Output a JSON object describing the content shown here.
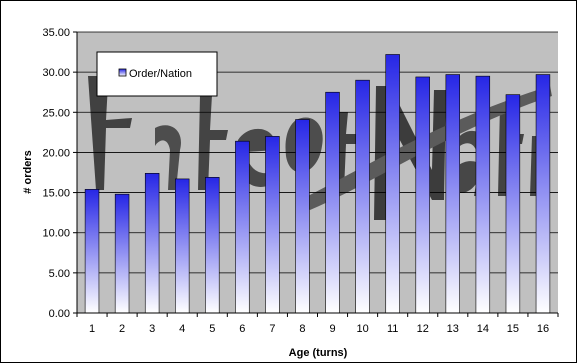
{
  "chart_data": {
    "type": "bar",
    "categories": [
      "1",
      "2",
      "3",
      "4",
      "5",
      "6",
      "7",
      "8",
      "9",
      "10",
      "11",
      "12",
      "13",
      "14",
      "15",
      "16"
    ],
    "series": [
      {
        "name": "Order/Nation",
        "values": [
          15.4,
          14.8,
          17.4,
          16.7,
          16.9,
          21.4,
          22.0,
          24.1,
          27.5,
          29.0,
          32.2,
          29.4,
          29.7,
          29.5,
          27.2,
          29.7
        ]
      }
    ],
    "xlabel": "Age (turns)",
    "ylabel": "# orders",
    "ylim": [
      0,
      35
    ],
    "yticks": [
      "0.00",
      "5.00",
      "10.00",
      "15.00",
      "20.00",
      "25.00",
      "30.00",
      "35.00"
    ],
    "grid": true,
    "legend": "top-left",
    "colors": {
      "bar_top": "#2626e6",
      "bar_bottom": "#ffffff",
      "plot_bg": "#c0c0c0"
    },
    "background_image": "Fate of Nation logo"
  }
}
